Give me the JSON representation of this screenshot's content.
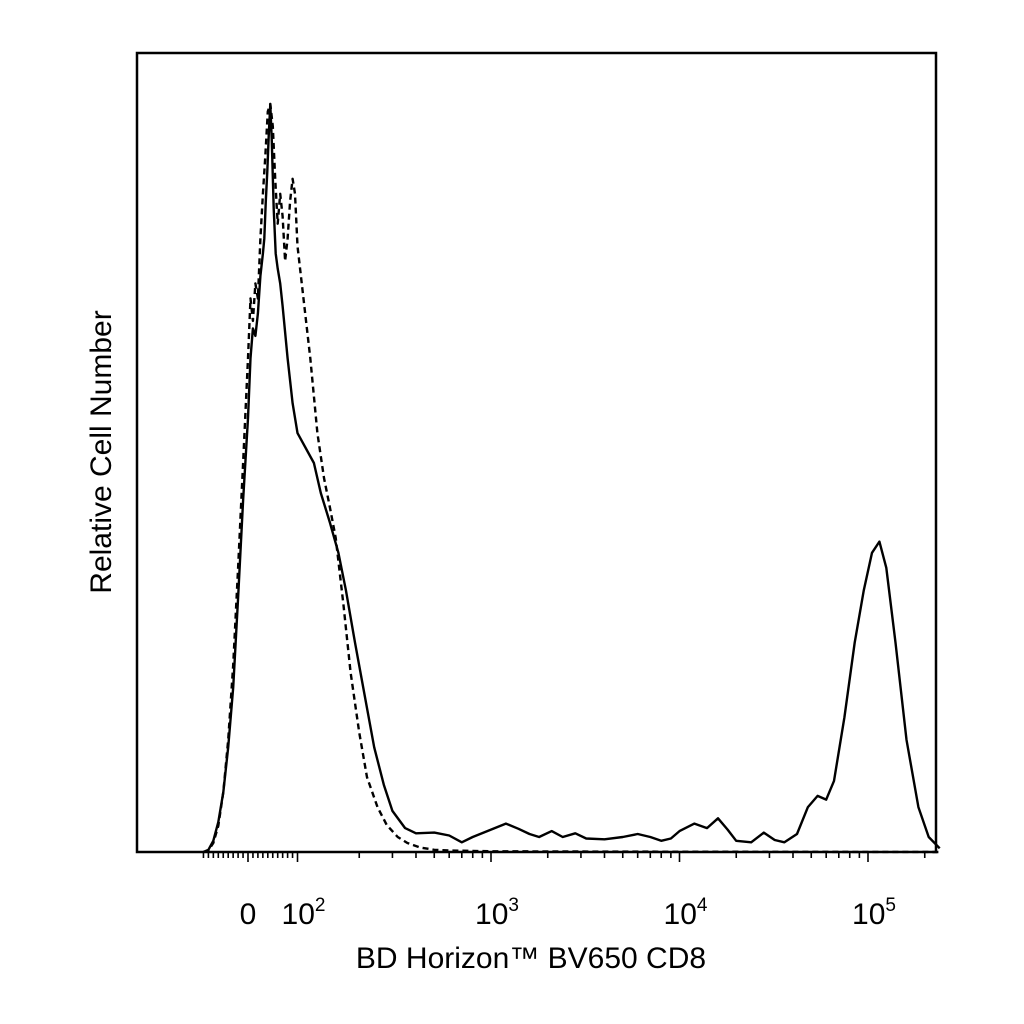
{
  "chart_data": {
    "type": "line",
    "title": "",
    "xlabel": "BD Horizon™ BV650 CD8",
    "ylabel": "Relative Cell Number",
    "x_scale": "biexponential",
    "x_tick_labels": [
      {
        "value": 0,
        "base": "0",
        "exp": ""
      },
      {
        "value": 100,
        "base": "10",
        "exp": "2"
      },
      {
        "value": 1000,
        "base": "10",
        "exp": "3"
      },
      {
        "value": 10000,
        "base": "10",
        "exp": "4"
      },
      {
        "value": 100000,
        "base": "10",
        "exp": "5"
      }
    ],
    "y_ticks_shown": false,
    "grid": false,
    "legend": "none",
    "colors": {
      "axis": "#000000",
      "line": "#000000",
      "background": "#ffffff"
    },
    "series": [
      {
        "style": "solid",
        "points": [
          [
            -90,
            0
          ],
          [
            -80,
            0.3
          ],
          [
            -70,
            1.5
          ],
          [
            -60,
            4
          ],
          [
            -50,
            8
          ],
          [
            -40,
            14
          ],
          [
            -30,
            22
          ],
          [
            -20,
            34
          ],
          [
            -10,
            47
          ],
          [
            0,
            58
          ],
          [
            5,
            66
          ],
          [
            10,
            70
          ],
          [
            15,
            69
          ],
          [
            20,
            72
          ],
          [
            25,
            77
          ],
          [
            30,
            80
          ],
          [
            33,
            82
          ],
          [
            36,
            87
          ],
          [
            39,
            91
          ],
          [
            42,
            96
          ],
          [
            45,
            100
          ],
          [
            48,
            95
          ],
          [
            52,
            86
          ],
          [
            56,
            80
          ],
          [
            60,
            78
          ],
          [
            65,
            76
          ],
          [
            70,
            73
          ],
          [
            80,
            66
          ],
          [
            90,
            60
          ],
          [
            100,
            56
          ],
          [
            115,
            52
          ],
          [
            125,
            48
          ],
          [
            140,
            44
          ],
          [
            155,
            40
          ],
          [
            170,
            35
          ],
          [
            190,
            28
          ],
          [
            210,
            22
          ],
          [
            240,
            14
          ],
          [
            270,
            9
          ],
          [
            300,
            5.5
          ],
          [
            350,
            3.2
          ],
          [
            400,
            2.5
          ],
          [
            500,
            2.6
          ],
          [
            600,
            2.2
          ],
          [
            700,
            1.3
          ],
          [
            800,
            2.0
          ],
          [
            1000,
            3.0
          ],
          [
            1200,
            3.8
          ],
          [
            1400,
            3.1
          ],
          [
            1600,
            2.4
          ],
          [
            1800,
            2.0
          ],
          [
            2100,
            2.8
          ],
          [
            2400,
            2.0
          ],
          [
            2800,
            2.5
          ],
          [
            3200,
            1.8
          ],
          [
            4000,
            1.7
          ],
          [
            5000,
            2.0
          ],
          [
            6000,
            2.4
          ],
          [
            7000,
            2.0
          ],
          [
            8000,
            1.5
          ],
          [
            9000,
            1.8
          ],
          [
            10000,
            2.8
          ],
          [
            12000,
            3.8
          ],
          [
            14000,
            3.2
          ],
          [
            16000,
            4.5
          ],
          [
            18000,
            3.0
          ],
          [
            20000,
            1.5
          ],
          [
            24000,
            1.3
          ],
          [
            28000,
            2.6
          ],
          [
            32000,
            1.6
          ],
          [
            36000,
            1.3
          ],
          [
            42000,
            2.4
          ],
          [
            48000,
            6.0
          ],
          [
            54000,
            7.5
          ],
          [
            60000,
            7.0
          ],
          [
            66000,
            9.5
          ],
          [
            75000,
            18
          ],
          [
            85000,
            28
          ],
          [
            95000,
            35
          ],
          [
            105000,
            40
          ],
          [
            115000,
            41.5
          ],
          [
            125000,
            38
          ],
          [
            140000,
            28
          ],
          [
            160000,
            15
          ],
          [
            185000,
            6
          ],
          [
            210000,
            2
          ],
          [
            240000,
            0.5
          ]
        ]
      },
      {
        "style": "dashed",
        "points": [
          [
            -90,
            0
          ],
          [
            -80,
            0.2
          ],
          [
            -70,
            1.2
          ],
          [
            -60,
            3.5
          ],
          [
            -50,
            8
          ],
          [
            -40,
            15
          ],
          [
            -30,
            25
          ],
          [
            -20,
            38
          ],
          [
            -10,
            52
          ],
          [
            0,
            66
          ],
          [
            5,
            74
          ],
          [
            10,
            71
          ],
          [
            15,
            76
          ],
          [
            20,
            74
          ],
          [
            25,
            82
          ],
          [
            30,
            88
          ],
          [
            35,
            93
          ],
          [
            40,
            99
          ],
          [
            45,
            100
          ],
          [
            50,
            97
          ],
          [
            55,
            90
          ],
          [
            60,
            84
          ],
          [
            65,
            88
          ],
          [
            70,
            85
          ],
          [
            75,
            79
          ],
          [
            80,
            82
          ],
          [
            85,
            87
          ],
          [
            90,
            90
          ],
          [
            95,
            88
          ],
          [
            100,
            81
          ],
          [
            110,
            66
          ],
          [
            120,
            56
          ],
          [
            130,
            50
          ],
          [
            140,
            46
          ],
          [
            150,
            42
          ],
          [
            165,
            33
          ],
          [
            180,
            24
          ],
          [
            200,
            16
          ],
          [
            220,
            10
          ],
          [
            250,
            6
          ],
          [
            280,
            3.6
          ],
          [
            320,
            2.0
          ],
          [
            360,
            1.2
          ],
          [
            420,
            0.6
          ],
          [
            500,
            0.3
          ],
          [
            600,
            0.2
          ],
          [
            1000,
            0.1
          ],
          [
            5000,
            0.05
          ],
          [
            240000,
            0
          ]
        ]
      }
    ]
  }
}
